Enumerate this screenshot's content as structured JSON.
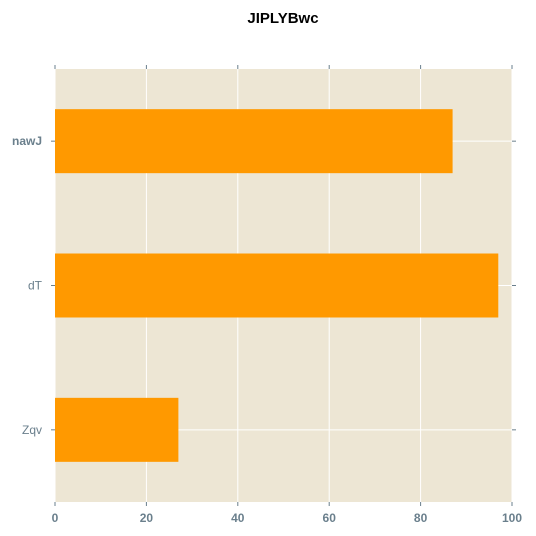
{
  "chart_data": {
    "type": "bar",
    "orientation": "horizontal",
    "title": "JIPLYBwc",
    "xlabel": "",
    "ylabel": "",
    "categories": [
      "nawJ",
      "dT",
      "Zqv"
    ],
    "values": [
      87,
      97,
      27
    ],
    "xlim": [
      0,
      100
    ],
    "xticks": [
      "0",
      "20",
      "40",
      "60",
      "80",
      "100"
    ],
    "grid": true,
    "bar_color": "#ff9900",
    "plot_background": "#ede6d4"
  }
}
